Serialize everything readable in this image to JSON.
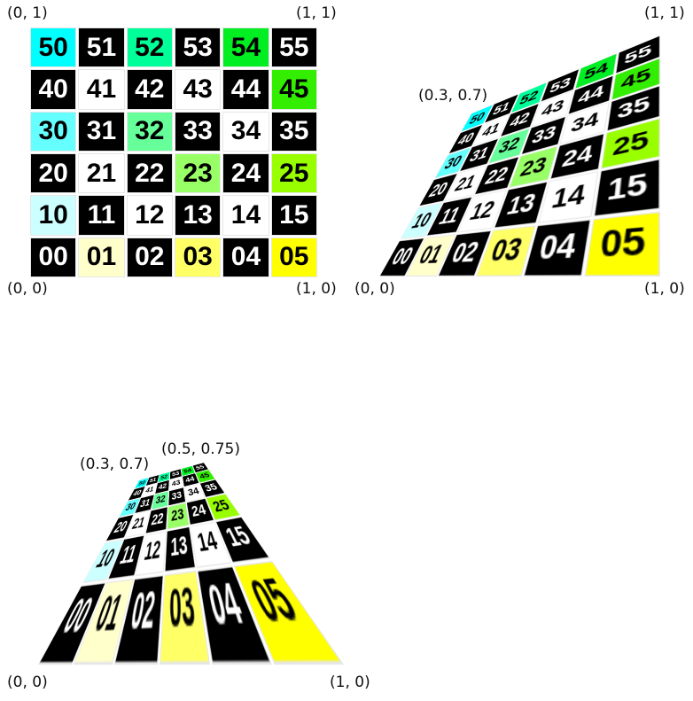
{
  "cells": [
    {
      "label": "50",
      "bg": "#00ffff",
      "fg": "#000000"
    },
    {
      "label": "51",
      "bg": "#000000",
      "fg": "#ffffff"
    },
    {
      "label": "52",
      "bg": "#00ff99",
      "fg": "#000000"
    },
    {
      "label": "53",
      "bg": "#000000",
      "fg": "#ffffff"
    },
    {
      "label": "54",
      "bg": "#00ee22",
      "fg": "#000000"
    },
    {
      "label": "55",
      "bg": "#000000",
      "fg": "#ffffff"
    },
    {
      "label": "40",
      "bg": "#000000",
      "fg": "#ffffff"
    },
    {
      "label": "41",
      "bg": "#ffffff",
      "fg": "#000000"
    },
    {
      "label": "42",
      "bg": "#000000",
      "fg": "#ffffff"
    },
    {
      "label": "43",
      "bg": "#ffffff",
      "fg": "#000000"
    },
    {
      "label": "44",
      "bg": "#000000",
      "fg": "#ffffff"
    },
    {
      "label": "45",
      "bg": "#33ee00",
      "fg": "#000000"
    },
    {
      "label": "30",
      "bg": "#66ffff",
      "fg": "#000000"
    },
    {
      "label": "31",
      "bg": "#000000",
      "fg": "#ffffff"
    },
    {
      "label": "32",
      "bg": "#66ff99",
      "fg": "#000000"
    },
    {
      "label": "33",
      "bg": "#000000",
      "fg": "#ffffff"
    },
    {
      "label": "34",
      "bg": "#ffffff",
      "fg": "#000000"
    },
    {
      "label": "35",
      "bg": "#000000",
      "fg": "#ffffff"
    },
    {
      "label": "20",
      "bg": "#000000",
      "fg": "#ffffff"
    },
    {
      "label": "21",
      "bg": "#ffffff",
      "fg": "#000000"
    },
    {
      "label": "22",
      "bg": "#000000",
      "fg": "#ffffff"
    },
    {
      "label": "23",
      "bg": "#99ff66",
      "fg": "#000000"
    },
    {
      "label": "24",
      "bg": "#000000",
      "fg": "#ffffff"
    },
    {
      "label": "25",
      "bg": "#99ff00",
      "fg": "#000000"
    },
    {
      "label": "10",
      "bg": "#ccffff",
      "fg": "#000000"
    },
    {
      "label": "11",
      "bg": "#000000",
      "fg": "#ffffff"
    },
    {
      "label": "12",
      "bg": "#ffffff",
      "fg": "#000000"
    },
    {
      "label": "13",
      "bg": "#000000",
      "fg": "#ffffff"
    },
    {
      "label": "14",
      "bg": "#ffffff",
      "fg": "#000000"
    },
    {
      "label": "15",
      "bg": "#000000",
      "fg": "#ffffff"
    },
    {
      "label": "00",
      "bg": "#000000",
      "fg": "#ffffff"
    },
    {
      "label": "01",
      "bg": "#ffffcc",
      "fg": "#000000"
    },
    {
      "label": "02",
      "bg": "#000000",
      "fg": "#ffffff"
    },
    {
      "label": "03",
      "bg": "#ffff66",
      "fg": "#000000"
    },
    {
      "label": "04",
      "bg": "#000000",
      "fg": "#ffffff"
    },
    {
      "label": "05",
      "bg": "#ffff00",
      "fg": "#000000"
    }
  ],
  "panels": [
    {
      "corner_labels": {
        "top_left": "(0, 1)",
        "top_right": "(1, 1)",
        "bottom_left": "(0, 0)",
        "bottom_right": "(1, 0)"
      }
    },
    {
      "corner_labels": {
        "top_left": "(0.3, 0.7)",
        "top_right": "(1, 1)",
        "bottom_left": "(0, 0)",
        "bottom_right": "(1, 0)"
      }
    },
    {
      "corner_labels": {
        "top_left": "(0.3, 0.7)",
        "top_right": "(0.5, 0.75)",
        "bottom_left": "(0, 0)",
        "bottom_right": "(1, 0)"
      }
    }
  ]
}
